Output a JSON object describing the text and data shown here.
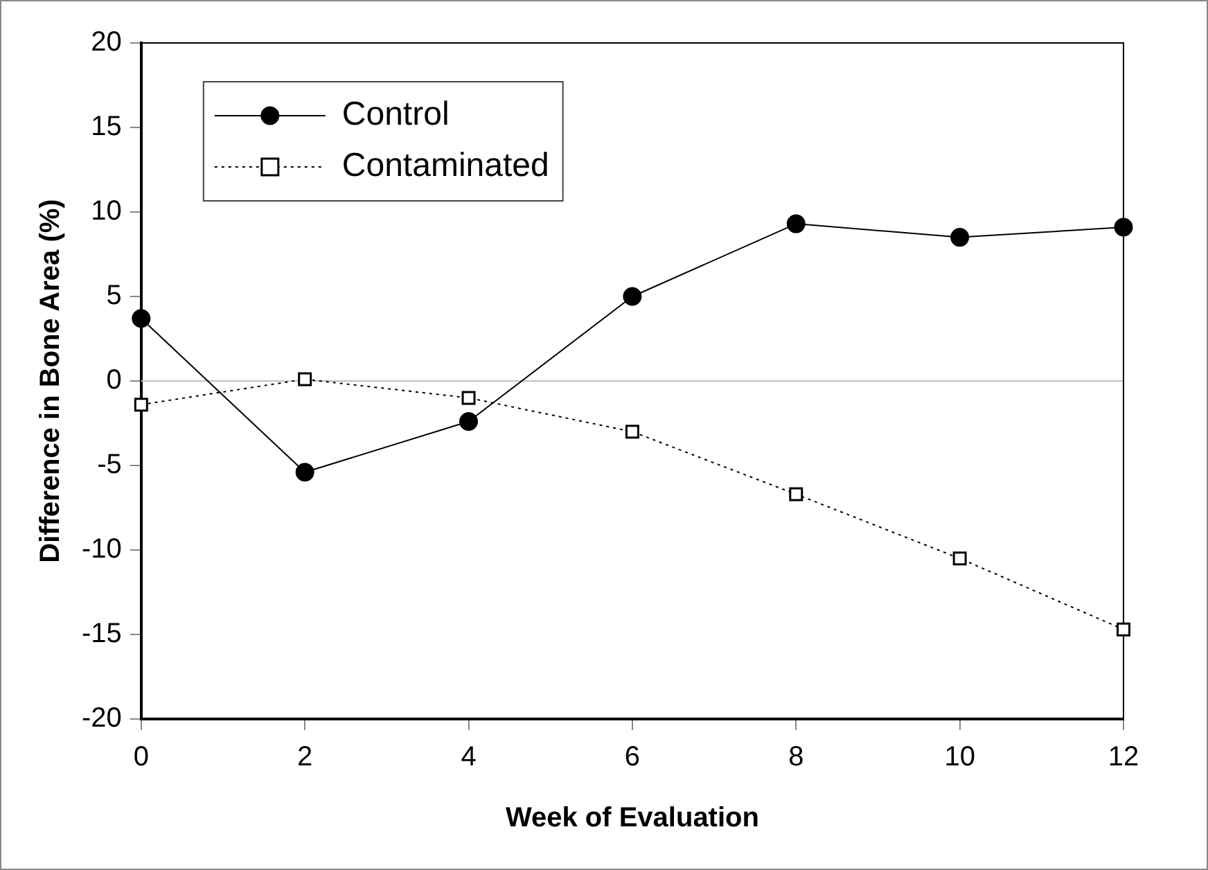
{
  "chart_data": {
    "type": "line",
    "xlabel": "Week of Evaluation",
    "ylabel": "Difference in Bone Area (%)",
    "x": [
      0,
      2,
      4,
      6,
      8,
      10,
      12
    ],
    "series": [
      {
        "name": "Control",
        "color": "#000000",
        "marker": "circle",
        "line_style": "solid",
        "values": [
          3.7,
          -5.4,
          -2.4,
          5.0,
          9.3,
          8.5,
          9.1
        ]
      },
      {
        "name": "Contaminated",
        "color": "#000000",
        "marker": "square",
        "line_style": "dotted",
        "values": [
          -1.4,
          0.1,
          -1.0,
          -3.0,
          -6.7,
          -10.5,
          -14.7
        ]
      }
    ],
    "xlim": [
      0,
      12
    ],
    "xticks": [
      0,
      2,
      4,
      6,
      8,
      10,
      12
    ],
    "ylim": [
      -20,
      20
    ],
    "yticks": [
      -20,
      -15,
      -10,
      -5,
      0,
      5,
      10,
      15,
      20
    ],
    "ref_lines": [
      {
        "axis": "y",
        "value": 0,
        "color": "#c0c0c0"
      }
    ],
    "grid": false,
    "legend": "top left"
  }
}
